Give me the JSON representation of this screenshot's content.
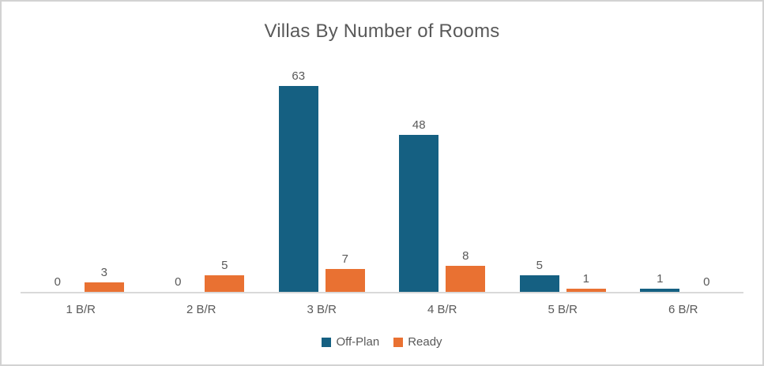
{
  "title": "Villas By Number of Rooms",
  "colors": {
    "off_plan": "#156082",
    "ready": "#E97132",
    "text": "#595959",
    "axis_line": "#D9D9D9",
    "frame_border": "#D2D2D2",
    "background": "#FFFFFF"
  },
  "legend": {
    "items": [
      {
        "label": "Off-Plan",
        "color": "#156082"
      },
      {
        "label": "Ready",
        "color": "#E97132"
      }
    ],
    "position": "bottom-center"
  },
  "chart_data": {
    "type": "bar",
    "title": "Villas By Number of Rooms",
    "categories": [
      "1 B/R",
      "2 B/R",
      "3 B/R",
      "4 B/R",
      "5 B/R",
      "6 B/R"
    ],
    "series": [
      {
        "name": "Off-Plan",
        "color": "#156082",
        "values": [
          0,
          0,
          63,
          48,
          5,
          1
        ]
      },
      {
        "name": "Ready",
        "color": "#E97132",
        "values": [
          3,
          5,
          7,
          8,
          1,
          0
        ]
      }
    ],
    "xlabel": "",
    "ylabel": "",
    "ylim": [
      0,
      70
    ],
    "grid": false,
    "y_axis_visible": false,
    "data_labels": true,
    "legend_position": "bottom"
  }
}
